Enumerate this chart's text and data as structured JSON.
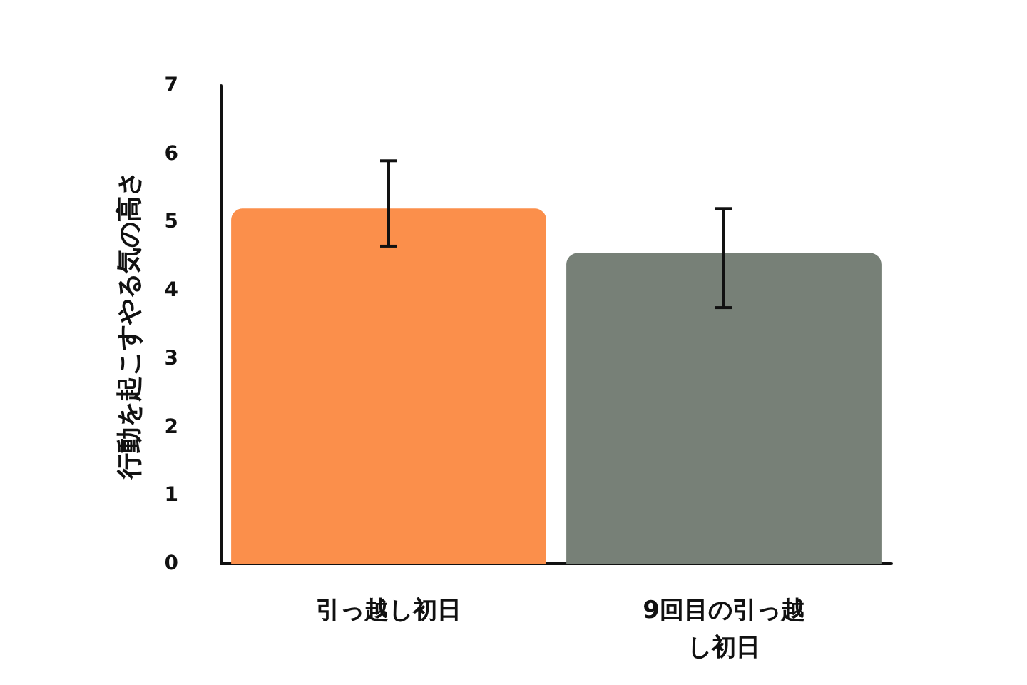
{
  "chart_data": {
    "type": "bar",
    "ylabel": "行動を起こすやる気の高さ",
    "categories": [
      "引っ越し初日",
      "9回目の引っ越し初日"
    ],
    "values": [
      5.2,
      4.55
    ],
    "colors": [
      "#fb8f4b",
      "#778077"
    ],
    "errors": [
      [
        4.65,
        5.9
      ],
      [
        3.75,
        5.2
      ]
    ],
    "ylim": [
      0,
      7
    ],
    "yticks": [
      0,
      1,
      2,
      3,
      4,
      5,
      6,
      7
    ],
    "grid": false
  }
}
